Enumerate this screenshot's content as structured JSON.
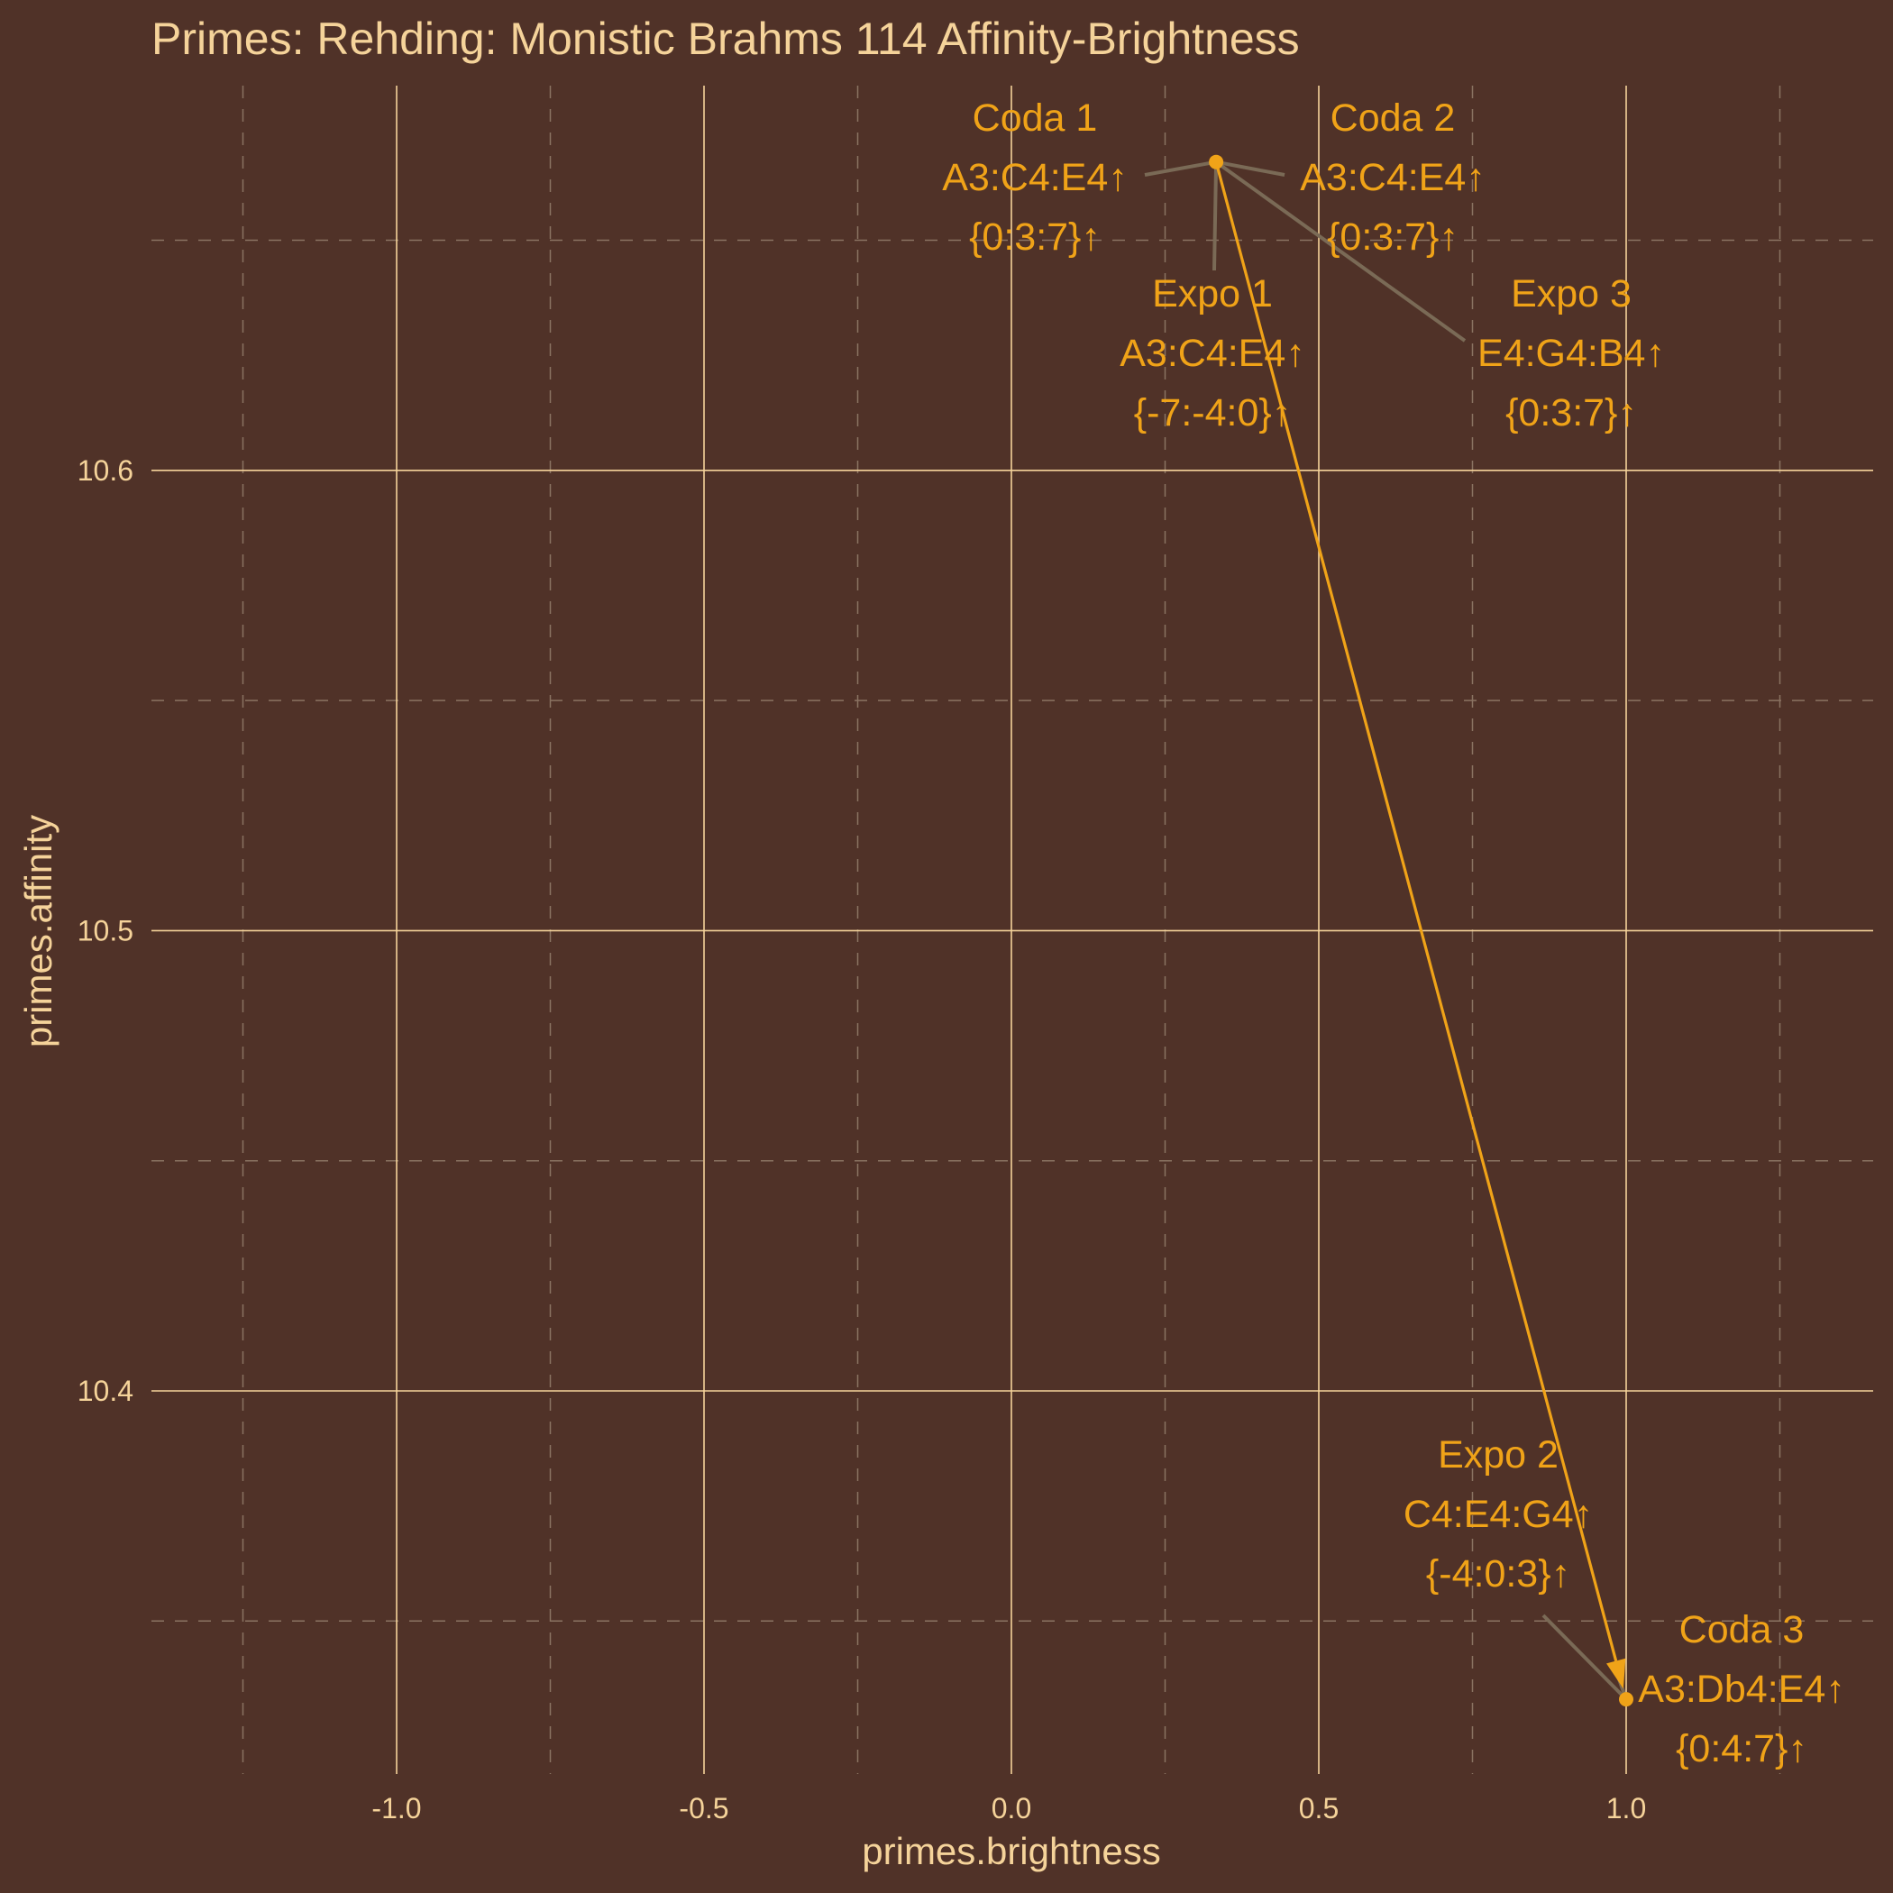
{
  "chart_data": {
    "type": "scatter",
    "title": "Primes: Rehding: Monistic Brahms 114 Affinity-Brightness",
    "xlabel": "primes.brightness",
    "ylabel": "primes.affinity",
    "xlim": [
      -1.5,
      1.5
    ],
    "ylim": [
      10.33,
      10.681
    ],
    "x_ticks": [
      -1.0,
      -0.5,
      0.0,
      0.5,
      1.0
    ],
    "x_tick_labels": [
      "-1.0",
      "-0.5",
      "0.0",
      "0.5",
      "1.0"
    ],
    "y_ticks": [
      10.4,
      10.5,
      10.6
    ],
    "y_tick_labels": [
      "10.4",
      "10.5",
      "10.6"
    ],
    "grid": true,
    "legend": "none",
    "colors": {
      "background": "#503228",
      "text": "#f5d39a",
      "grid_major": "#f5d39a",
      "grid_minor": "#8a7362",
      "series": "#f0a318",
      "leader": "#7a6a56"
    },
    "points": [
      {
        "x": 0.333,
        "y": 10.667
      },
      {
        "x": 1.0,
        "y": 10.333
      }
    ],
    "path": [
      {
        "from": [
          0.333,
          10.667
        ],
        "to": [
          1.0,
          10.333
        ],
        "arrow": true
      }
    ],
    "annotations": [
      {
        "name": "Coda 1",
        "chord": "A3:C4:E4↑",
        "set": "{0:3:7}↑",
        "target": [
          0.333,
          10.667
        ]
      },
      {
        "name": "Coda 2",
        "chord": "A3:C4:E4↑",
        "set": "{0:3:7}↑",
        "target": [
          0.333,
          10.667
        ]
      },
      {
        "name": "Expo 1",
        "chord": "A3:C4:E4↑",
        "set": "{-7:-4:0}↑",
        "target": [
          0.333,
          10.667
        ]
      },
      {
        "name": "Expo 3",
        "chord": "E4:G4:B4↑",
        "set": "{0:3:7}↑",
        "target": [
          0.333,
          10.667
        ]
      },
      {
        "name": "Expo 2",
        "chord": "C4:E4:G4↑",
        "set": "{-4:0:3}↑",
        "target": [
          1.0,
          10.333
        ]
      },
      {
        "name": "Coda 3",
        "chord": "A3:Db4:E4↑",
        "set": "{0:4:7}↑",
        "target": [
          1.0,
          10.333
        ]
      }
    ]
  }
}
